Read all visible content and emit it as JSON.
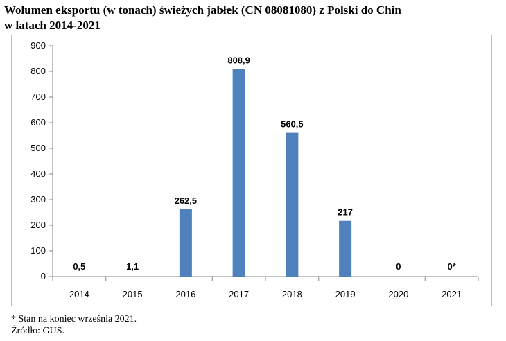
{
  "title_lines": [
    "Wolumen eksportu (w tonach) świeżych jabłek (CN 08081080) z Polski do Chin",
    "w latach 2014-2021"
  ],
  "footnote": "* Stan na koniec września 2021.",
  "source": "Źródło: GUS.",
  "colors": {
    "bar": "#4f81bd",
    "axis": "#868686"
  },
  "chart_data": {
    "type": "bar",
    "title": "Wolumen eksportu (w tonach) świeżych jabłek (CN 08081080) z Polski do Chin w latach 2014-2021",
    "categories": [
      "2014",
      "2015",
      "2016",
      "2017",
      "2018",
      "2019",
      "2020",
      "2021"
    ],
    "values": [
      0.5,
      1.1,
      262.5,
      808.9,
      560.5,
      217,
      0,
      0
    ],
    "data_labels": [
      "0,5",
      "1,1",
      "262,5",
      "808,9",
      "560,5",
      "217",
      "0",
      "0*"
    ],
    "yticks": [
      0,
      100,
      200,
      300,
      400,
      500,
      600,
      700,
      800,
      900
    ],
    "ylim": [
      0,
      900
    ],
    "xlabel": "",
    "ylabel": "",
    "grid": false,
    "legend": "none"
  }
}
